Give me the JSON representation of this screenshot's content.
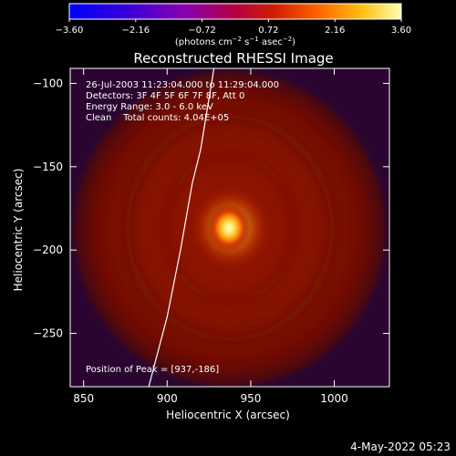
{
  "chart_data": {
    "type": "heatmap",
    "title": "Reconstructed RHESSI Image",
    "xlabel": "Heliocentric X (arcsec)",
    "ylabel": "Heliocentric Y (arcsec)",
    "xlim": [
      842,
      1033
    ],
    "ylim": [
      -282,
      -91
    ],
    "x_ticks": [
      850,
      900,
      950,
      1000
    ],
    "x_tick_labels": [
      "850",
      "900",
      "950",
      "1000"
    ],
    "y_ticks": [
      -100,
      -150,
      -200,
      -250
    ],
    "y_tick_labels": [
      "−100",
      "−150",
      "−200",
      "−250"
    ],
    "colorbar": {
      "range": [
        -3.6,
        3.6
      ],
      "ticks": [
        -3.6,
        -2.16,
        -0.72,
        0.72,
        2.16,
        3.6
      ],
      "tick_labels": [
        "−3.60",
        "−2.16",
        "−0.72",
        "0.72",
        "2.16",
        "3.60"
      ],
      "unit_parts": [
        "(photons cm",
        "−2",
        " s",
        "−1",
        " asec",
        "−2",
        ")"
      ]
    },
    "annotations": [
      "26-Jul-2003 11:23:04.000 to 11:29:04.000",
      "Detectors: 3F 4F 5F 6F 7F 8F, Att 0",
      "Energy Range: 3.0 - 6.0 keV",
      "Clean    Total counts: 4.04E+05"
    ],
    "peak_label": "Position of Peak = [937,-186]",
    "peak": [
      937,
      -186
    ],
    "limb": [
      [
        928,
        -91
      ],
      [
        920,
        -140
      ],
      [
        915,
        -160
      ],
      [
        908,
        -200
      ],
      [
        900,
        -240
      ],
      [
        889,
        -282
      ]
    ],
    "grid": false
  },
  "footer": {
    "timestamp": "4-May-2022 05:23"
  }
}
